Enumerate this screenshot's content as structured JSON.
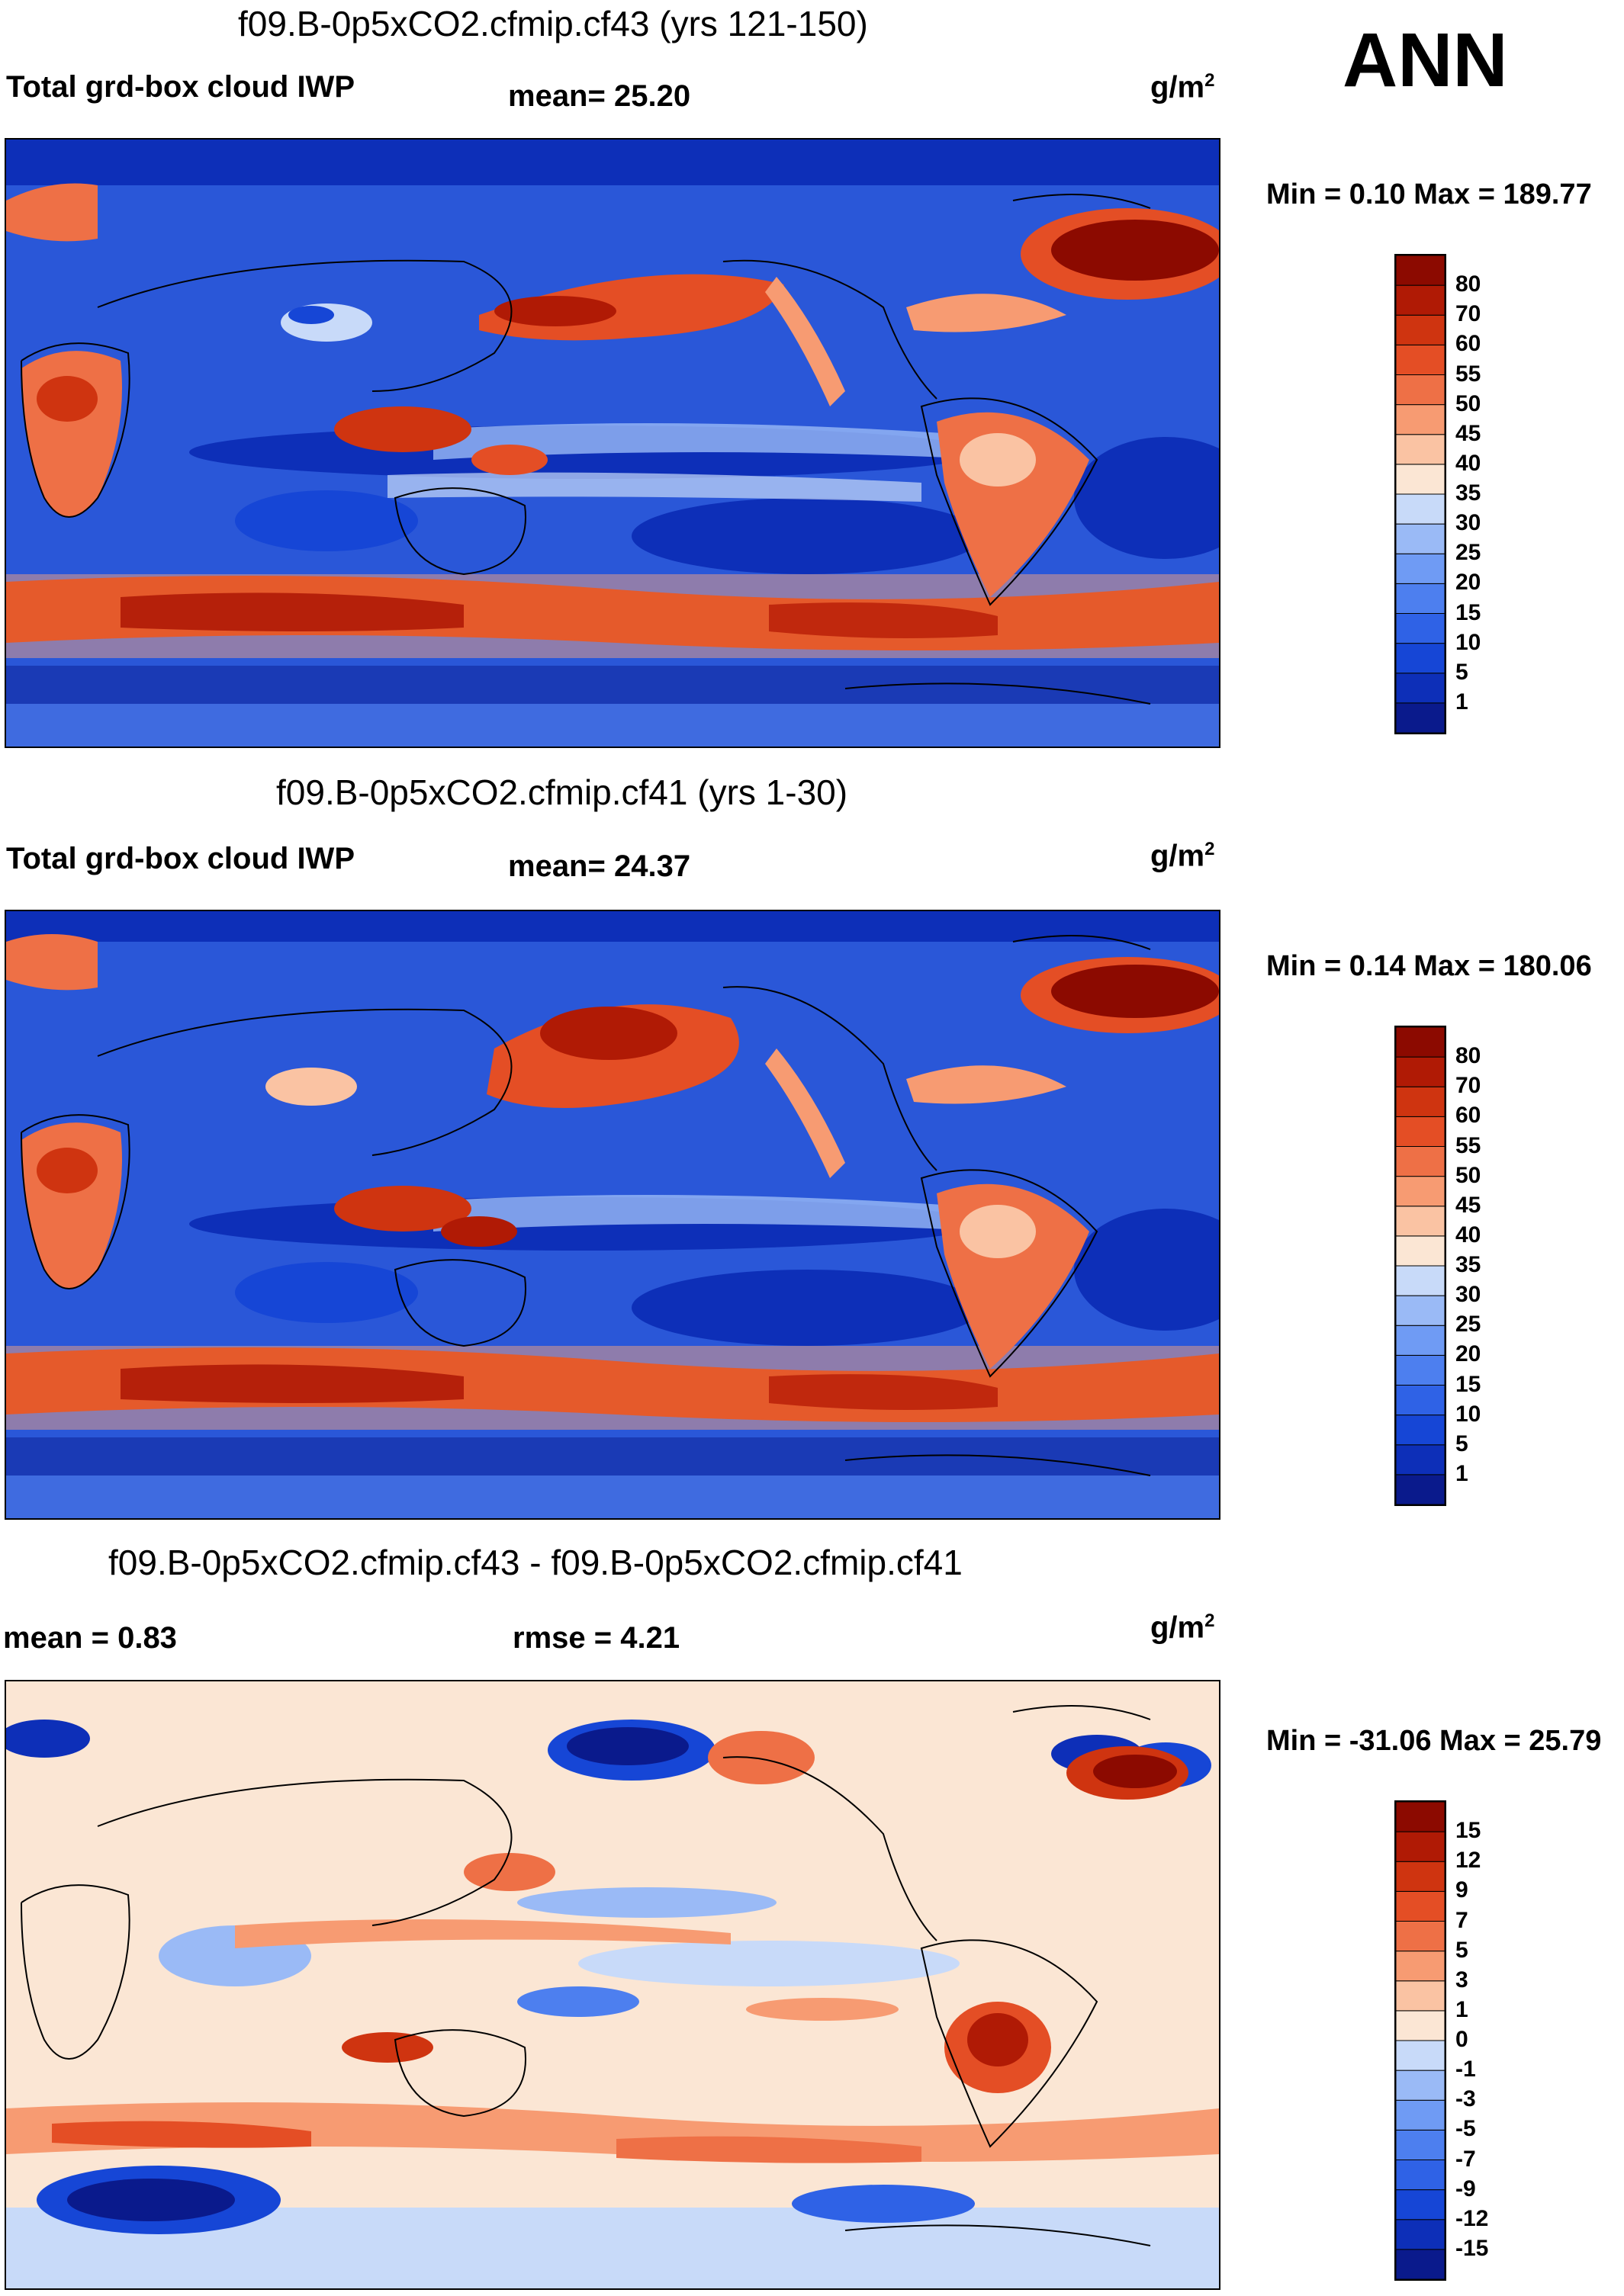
{
  "season": "ANN",
  "panels": [
    {
      "title": "f09.B-0p5xCO2.cfmip.cf43 (yrs 121-150)",
      "left_label": "Total grd-box cloud IWP",
      "center_label": "mean=  25.20",
      "units": "g/m",
      "units_exp": "2",
      "minmax": "Min =   0.10 Max = 189.77"
    },
    {
      "title": "f09.B-0p5xCO2.cfmip.cf41 (yrs 1-30)",
      "left_label": "Total grd-box cloud IWP",
      "center_label": "mean=  24.37",
      "units": "g/m",
      "units_exp": "2",
      "minmax": "Min =   0.14 Max = 180.06"
    },
    {
      "title": "f09.B-0p5xCO2.cfmip.cf43 - f09.B-0p5xCO2.cfmip.cf41",
      "left_label": "mean =   0.83",
      "center_label": "rmse =   4.21",
      "units": "g/m",
      "units_exp": "2",
      "minmax": "Min = -31.06 Max =  25.79"
    }
  ],
  "chart_data": [
    {
      "type": "heatmap",
      "title": "f09.B-0p5xCO2.cfmip.cf43 (yrs 121-150)",
      "variable": "Total grd-box cloud IWP",
      "units": "g/m2",
      "mean": 25.2,
      "min": 0.1,
      "max": 189.77,
      "colorbar_levels": [
        1,
        5,
        10,
        15,
        20,
        25,
        30,
        35,
        40,
        45,
        50,
        55,
        60,
        70,
        80
      ],
      "colorbar_colors": [
        "#0a1a8c",
        "#0d2fb8",
        "#1646d6",
        "#2f62e6",
        "#4d7fef",
        "#6f9bf4",
        "#9abaf6",
        "#c8daf9",
        "#fbe6d4",
        "#fac3a3",
        "#f79b72",
        "#ee7046",
        "#e44e25",
        "#cf3410",
        "#b01a05",
        "#8c0a00"
      ]
    },
    {
      "type": "heatmap",
      "title": "f09.B-0p5xCO2.cfmip.cf41 (yrs 1-30)",
      "variable": "Total grd-box cloud IWP",
      "units": "g/m2",
      "mean": 24.37,
      "min": 0.14,
      "max": 180.06,
      "colorbar_levels": [
        1,
        5,
        10,
        15,
        20,
        25,
        30,
        35,
        40,
        45,
        50,
        55,
        60,
        70,
        80
      ],
      "colorbar_colors": [
        "#0a1a8c",
        "#0d2fb8",
        "#1646d6",
        "#2f62e6",
        "#4d7fef",
        "#6f9bf4",
        "#9abaf6",
        "#c8daf9",
        "#fbe6d4",
        "#fac3a3",
        "#f79b72",
        "#ee7046",
        "#e44e25",
        "#cf3410",
        "#b01a05",
        "#8c0a00"
      ]
    },
    {
      "type": "heatmap",
      "title": "f09.B-0p5xCO2.cfmip.cf43 - f09.B-0p5xCO2.cfmip.cf41",
      "units": "g/m2",
      "mean": 0.83,
      "rmse": 4.21,
      "min": -31.06,
      "max": 25.79,
      "colorbar_levels": [
        -15,
        -12,
        -9,
        -7,
        -5,
        -3,
        -1,
        0,
        1,
        3,
        5,
        7,
        9,
        12,
        15
      ],
      "colorbar_colors": [
        "#0a1a8c",
        "#0d2fb8",
        "#1646d6",
        "#2f62e6",
        "#4d7fef",
        "#6f9bf4",
        "#9abaf6",
        "#c8daf9",
        "#fbe6d4",
        "#fac3a3",
        "#f79b72",
        "#ee7046",
        "#e44e25",
        "#cf3410",
        "#b01a05",
        "#8c0a00"
      ]
    }
  ]
}
